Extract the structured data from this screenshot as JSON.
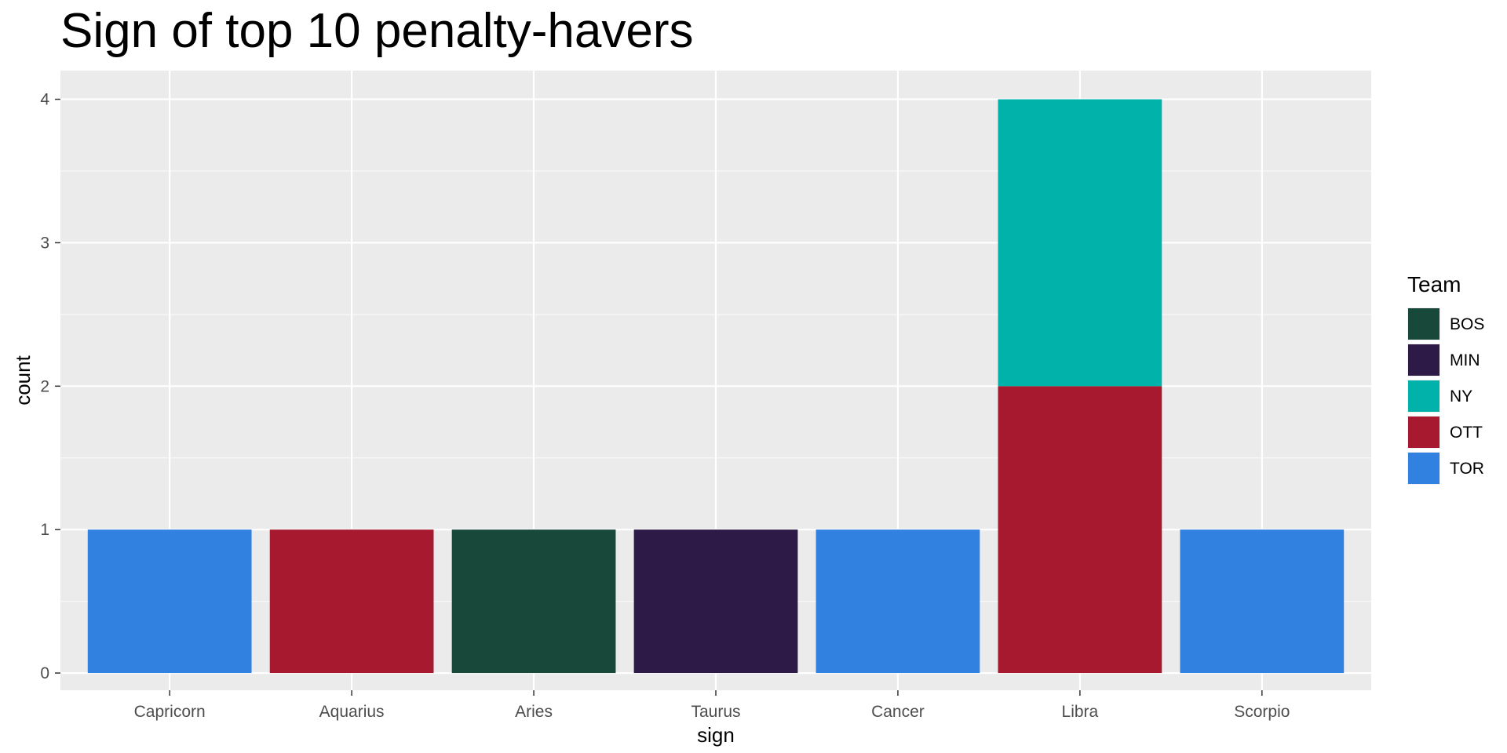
{
  "chart_data": {
    "type": "bar",
    "stacked": true,
    "title": "Sign of top 10 penalty-havers",
    "xlabel": "sign",
    "ylabel": "count",
    "categories": [
      "Capricorn",
      "Aquarius",
      "Aries",
      "Taurus",
      "Cancer",
      "Libra",
      "Scorpio"
    ],
    "ylim": [
      -0.12,
      4.2
    ],
    "yticks": [
      0,
      1,
      2,
      3,
      4
    ],
    "grid": true,
    "legend": {
      "title": "Team",
      "placement": "right"
    },
    "series": [
      {
        "name": "BOS",
        "color": "#18483A",
        "values": [
          0,
          0,
          1,
          0,
          0,
          0,
          0
        ]
      },
      {
        "name": "MIN",
        "color": "#2D1A47",
        "values": [
          0,
          0,
          0,
          1,
          0,
          0,
          0
        ]
      },
      {
        "name": "NY",
        "color": "#00B2A9",
        "values": [
          0,
          0,
          0,
          0,
          0,
          2,
          0
        ]
      },
      {
        "name": "OTT",
        "color": "#A6192E",
        "values": [
          0,
          1,
          0,
          0,
          0,
          2,
          0
        ]
      },
      {
        "name": "TOR",
        "color": "#3182E0",
        "values": [
          1,
          0,
          0,
          0,
          1,
          0,
          1
        ]
      }
    ]
  }
}
